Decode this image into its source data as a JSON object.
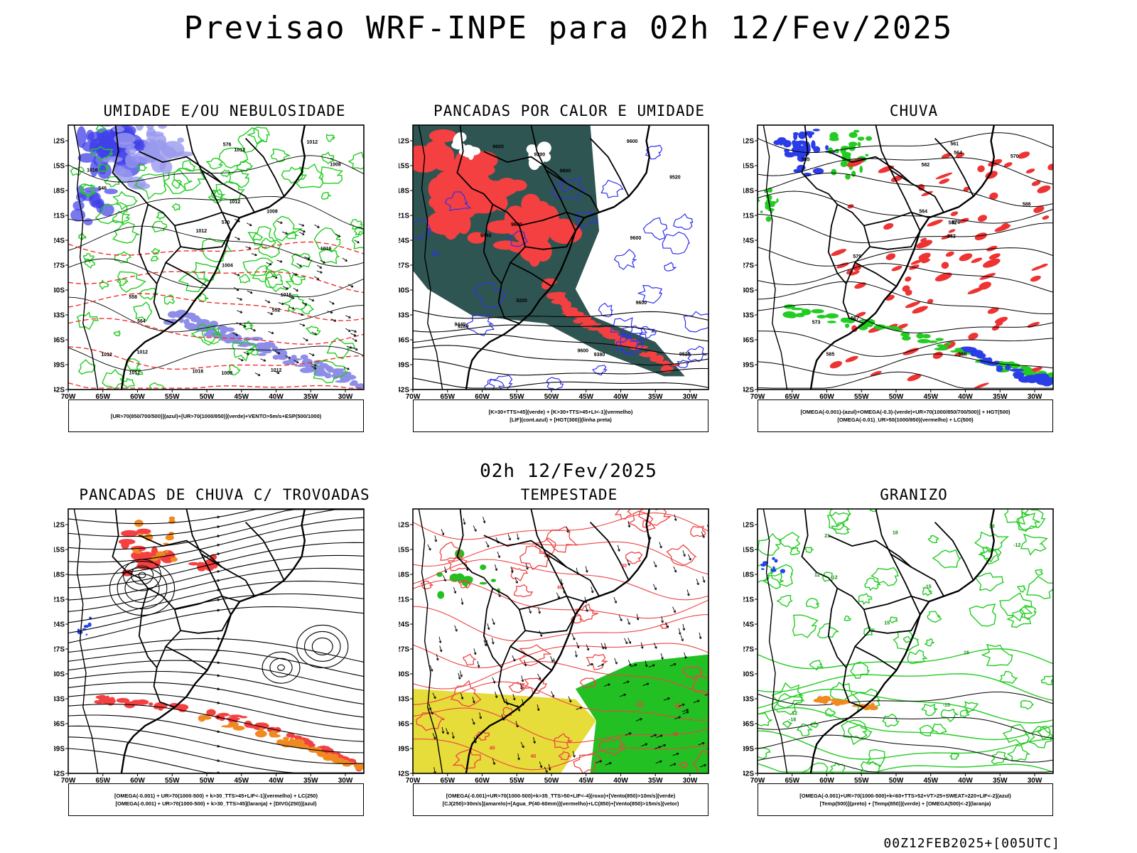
{
  "main_title": "Previsao WRF-INPE  para 02h 12/Fev/2025",
  "mid_title": "02h 12/Fev/2025",
  "footer": "00Z12FEB2025+[005UTC]",
  "axes": {
    "lat_labels": [
      "12S",
      "15S",
      "18S",
      "21S",
      "24S",
      "27S",
      "30S",
      "33S",
      "36S",
      "39S",
      "42S"
    ],
    "lon_labels": [
      "70W",
      "65W",
      "60W",
      "55W",
      "50W",
      "45W",
      "40W",
      "35W",
      "30W"
    ]
  },
  "colors": {
    "rh_850_500": "#4040e8",
    "rh_1000_850": "#22cc22",
    "heat_pancadas": "#f44040",
    "dark_teal": "#2f5552",
    "orange": "#f08a20",
    "yellow": "#e6dc3a",
    "green_fill": "#22c022"
  },
  "panels": [
    {
      "title": "UMIDADE E/OU NEBULOSIDADE",
      "legend": [
        "[UR>70(850/700/500)](azul)+[UR>70(1000/850)](verde)+VENTO>5m/s+ESP(500/1000)"
      ],
      "contour_labels": [
        "1012",
        "1012",
        "1012",
        "1016",
        "1012",
        "1012",
        "1016",
        "1016",
        "1004",
        "1008",
        "1008",
        "1012",
        "1012",
        "1016",
        "1012",
        "576",
        "570",
        "564",
        "558",
        "552",
        "546",
        "1008"
      ]
    },
    {
      "title": "PANCADAS POR CALOR E UMIDADE",
      "legend": [
        "[K>30+TTS>45](verde) + [K>30+TTS>45+LI<-1](vermelho)",
        "[LIF](cont.azul) + [HGT(300)](linha preta)"
      ],
      "contour_labels": [
        "9600",
        "9600",
        "9600",
        "9600",
        "9600",
        "9600",
        "9520",
        "9440",
        "9380",
        "9280",
        "9200",
        "9200",
        "9600",
        "9520",
        "9440"
      ]
    },
    {
      "title": "CHUVA",
      "legend": [
        "[OMEGA(-0.001)-(azul)+OMEGA(-0.3)-(verde)+UR>70(1000/850/700/500)] + HGT(500)",
        "[OMEGA(-0.01)_UR>50(1000/850)(vermelho) + LC(500)"
      ],
      "contour_labels": [
        "582",
        "582",
        "585",
        "588",
        "585",
        "582",
        "579",
        "576",
        "573",
        "570",
        "567",
        "564",
        "561",
        "558",
        "564"
      ]
    },
    {
      "title": "PANCADAS DE CHUVA C/ TROVOADAS",
      "legend": [
        "[OMEGA(-0.001) + UR>70(1000-500) + k>30_TTS>45+LIF<-1](vermelho) + LC(250)",
        "[OMEGA(-0.001) + UR>70(1000-500) + k>30_TTS>45](laranja) + [DIVG(250)](azul)"
      ],
      "contour_labels": []
    },
    {
      "title": "TEMPESTADE",
      "legend": [
        "[OMEGA(-0.001)+UR>70(1000-500)+k>35_TTS>50+LIF<-4](roxo)+[Vento(850)>10m/s](verde)",
        "[CJ(250)>30m/s](amarelo)+[Agua_P(40-60mm)](vermelho)+LC(850)+[Vento(850)>15m/s](vetor)"
      ],
      "contour_labels": [
        "40",
        "40",
        "40",
        "40",
        "40"
      ]
    },
    {
      "title": "GRANIZO",
      "legend": [
        "[OMEGA(-0.001)+UR>70(1000-500)+k<60+TTS>52+VT>25+SWEAT>220+LIF<-2](azul)",
        "[Temp(500)](preto) + [Temp(850)](verde) + [OMEGA(500)<-2](laranja)"
      ],
      "contour_labels": [
        "-12",
        "-15",
        "-18",
        "-12",
        "-15",
        "15",
        "12",
        "18",
        "21",
        "15",
        "18",
        "12"
      ]
    }
  ]
}
